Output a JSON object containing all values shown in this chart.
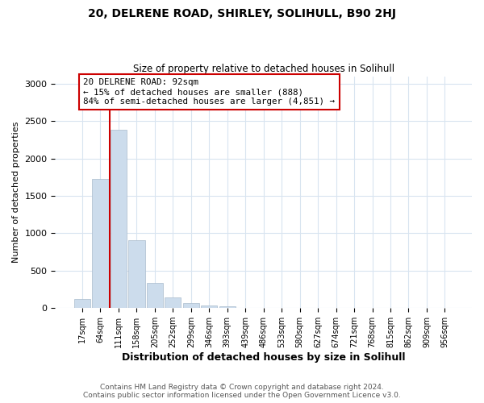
{
  "title": "20, DELRENE ROAD, SHIRLEY, SOLIHULL, B90 2HJ",
  "subtitle": "Size of property relative to detached houses in Solihull",
  "xlabel": "Distribution of detached houses by size in Solihull",
  "ylabel": "Number of detached properties",
  "annotation_line1": "20 DELRENE ROAD: 92sqm",
  "annotation_line2": "← 15% of detached houses are smaller (888)",
  "annotation_line3": "84% of semi-detached houses are larger (4,851) →",
  "bar_color": "#ccdcec",
  "bar_edge_color": "#aabbcc",
  "vline_color": "#cc0000",
  "annotation_box_color": "#ffffff",
  "annotation_box_edge": "#cc0000",
  "categories": [
    "17sqm",
    "64sqm",
    "111sqm",
    "158sqm",
    "205sqm",
    "252sqm",
    "299sqm",
    "346sqm",
    "393sqm",
    "439sqm",
    "486sqm",
    "533sqm",
    "580sqm",
    "627sqm",
    "674sqm",
    "721sqm",
    "768sqm",
    "815sqm",
    "862sqm",
    "909sqm",
    "956sqm"
  ],
  "values": [
    120,
    1730,
    2380,
    910,
    340,
    145,
    70,
    35,
    28,
    0,
    0,
    5,
    5,
    0,
    0,
    0,
    0,
    0,
    0,
    0,
    0
  ],
  "ylim": [
    0,
    3100
  ],
  "yticks": [
    0,
    500,
    1000,
    1500,
    2000,
    2500,
    3000
  ],
  "vline_x": 1.5,
  "footer_line1": "Contains HM Land Registry data © Crown copyright and database right 2024.",
  "footer_line2": "Contains public sector information licensed under the Open Government Licence v3.0.",
  "background_color": "#ffffff",
  "grid_color": "#d8e4f0"
}
